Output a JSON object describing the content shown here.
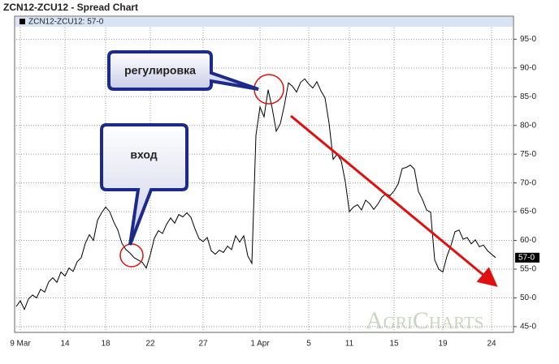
{
  "chart_data": {
    "type": "line",
    "title": "ZCN12-ZCU12 - Spread Chart",
    "watermark": "AgriCharts",
    "annotations": [
      "регулировка",
      "вход"
    ],
    "grid": true,
    "categories": [
      null,
      "9 Mar",
      null,
      null,
      null,
      null,
      null,
      null,
      null,
      null,
      null,
      null,
      "14",
      null,
      null,
      null,
      null,
      null,
      null,
      null,
      null,
      null,
      "18",
      null,
      null,
      null,
      null,
      null,
      null,
      null,
      null,
      null,
      null,
      "22",
      null,
      null,
      null,
      null,
      null,
      null,
      null,
      null,
      null,
      null,
      null,
      null,
      "27",
      null,
      null,
      null,
      null,
      null,
      null,
      null,
      null,
      null,
      null,
      null,
      null,
      null,
      "1 Apr",
      null,
      null,
      null,
      null,
      null,
      null,
      null,
      null,
      null,
      null,
      null,
      "5",
      null,
      null,
      null,
      null,
      null,
      null,
      null,
      null,
      null,
      "11",
      null,
      null,
      null,
      null,
      null,
      null,
      null,
      null,
      null,
      null,
      "15",
      null,
      null,
      null,
      null,
      null,
      null,
      null,
      null,
      null,
      null,
      null,
      "19",
      null,
      null,
      null,
      null,
      null,
      null,
      null,
      null,
      null,
      null,
      null,
      "24",
      null
    ],
    "series": [
      {
        "name": "ZCN12-ZCU12: 57-0",
        "color": "#000000",
        "values": [
          48.5,
          49.5,
          48,
          49.8,
          50.5,
          50,
          51.5,
          51,
          52.8,
          53.5,
          52.7,
          54.5,
          53.8,
          55.2,
          54.6,
          56.3,
          57,
          59.5,
          61,
          60,
          63.5,
          64.8,
          65.8,
          65,
          63.2,
          61.8,
          59.5,
          58.4,
          57.8,
          57,
          56.6,
          56.2,
          55.2,
          57.5,
          60.4,
          61.7,
          61.2,
          62.8,
          63.9,
          63,
          64.5,
          64.1,
          64.8,
          64,
          62,
          60.3,
          59.8,
          60.5,
          58.2,
          57.6,
          58.3,
          57.9,
          59,
          58.4,
          60.8,
          59.7,
          60.8,
          57.3,
          56,
          78.3,
          83.2,
          81.5,
          86.2,
          83,
          79,
          80.3,
          83.5,
          87.4,
          86.8,
          85.8,
          87.5,
          88.1,
          87.2,
          86.5,
          87.6,
          86,
          84.8,
          80.4,
          74.1,
          75,
          73.8,
          70.2,
          65,
          65.8,
          66.2,
          65.3,
          67,
          66.4,
          65.4,
          66.3,
          67.5,
          68.1,
          67.8,
          68.6,
          69.8,
          72.5,
          72.7,
          73.1,
          72.4,
          68.5,
          67.1,
          65.3,
          64.9,
          56.6,
          55,
          54.5,
          57.2,
          59.1,
          61.5,
          61.8,
          60.2,
          60.5,
          59.4,
          60.1,
          58.9,
          59.2,
          58.2,
          57.6,
          57
        ]
      }
    ],
    "last_value_label": {
      "value": 57,
      "label": "57-0"
    },
    "ylim": [
      44,
      99
    ],
    "yticks": [
      {
        "value": 45,
        "label": "45-0"
      },
      {
        "value": 50,
        "label": "50-0"
      },
      {
        "value": 55,
        "label": "55-0"
      },
      {
        "value": 60,
        "label": "60-0"
      },
      {
        "value": 65,
        "label": "65-0"
      },
      {
        "value": 70,
        "label": "70-0"
      },
      {
        "value": 75,
        "label": "75-0"
      },
      {
        "value": 80,
        "label": "80-0"
      },
      {
        "value": 85,
        "label": "85-0"
      },
      {
        "value": 90,
        "label": "90-0"
      },
      {
        "value": 95,
        "label": "95-0"
      }
    ]
  }
}
